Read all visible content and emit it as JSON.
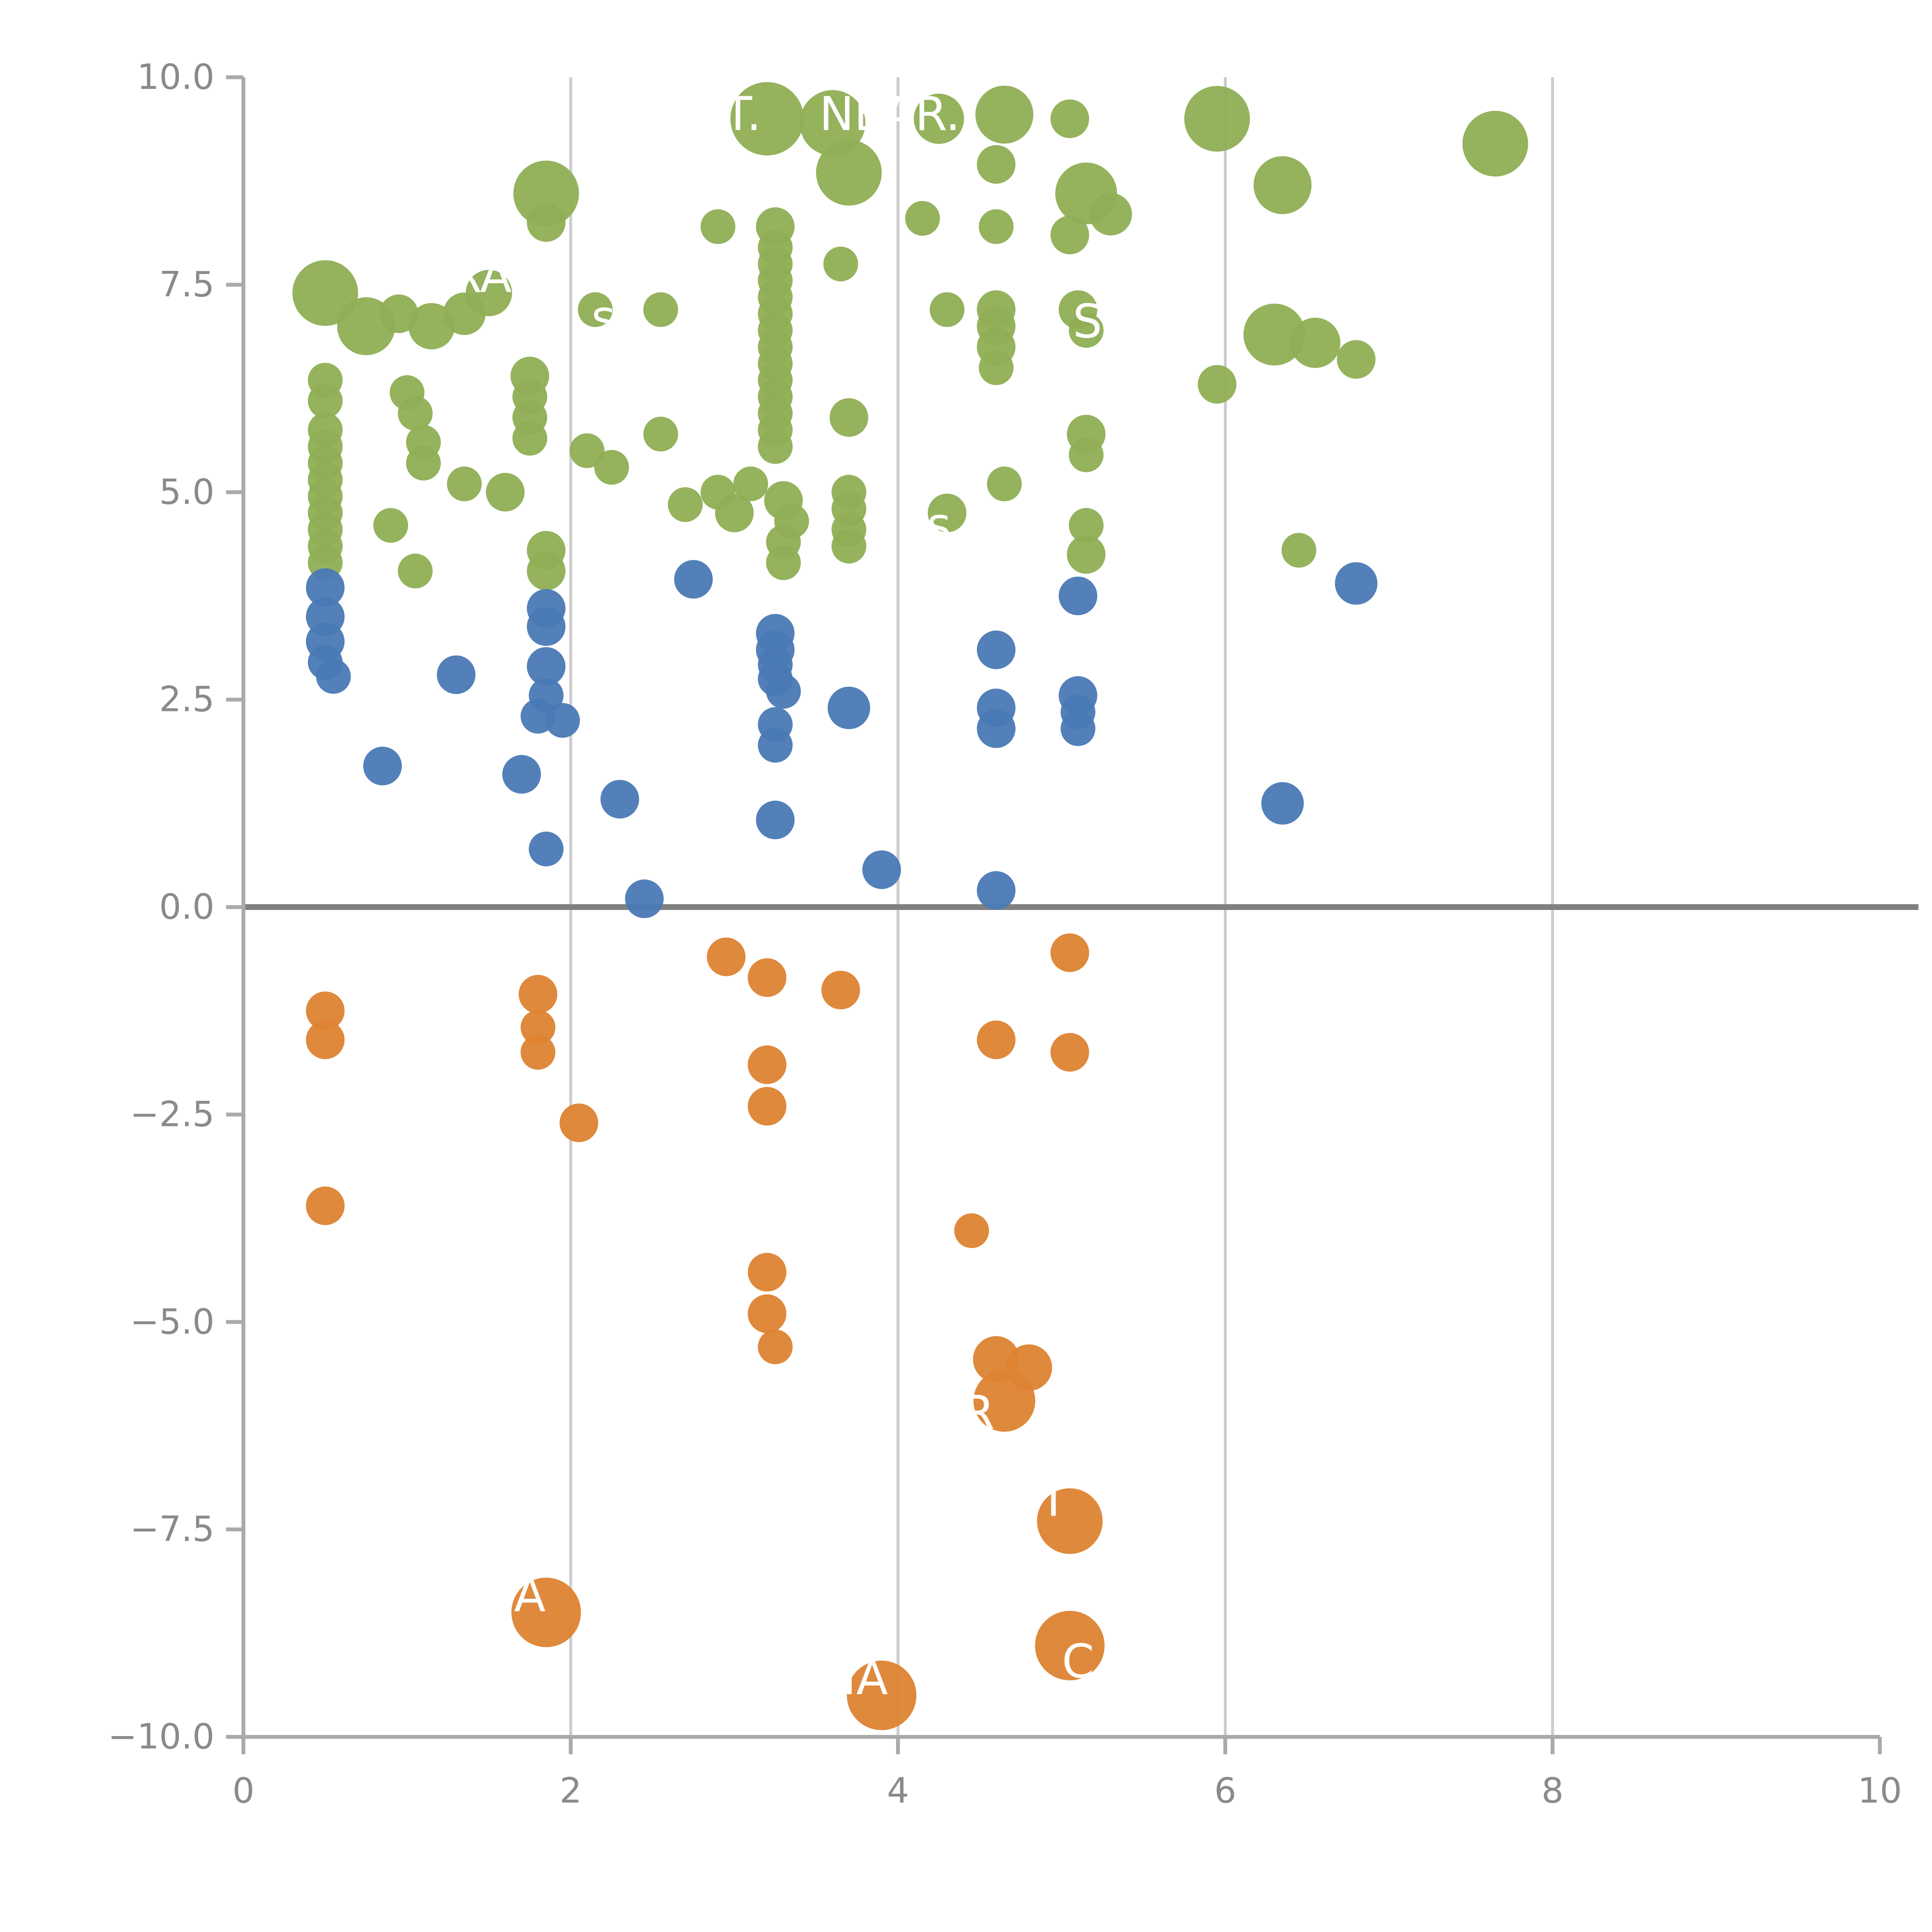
{
  "chart_data": {
    "type": "scatter",
    "title": "",
    "xlabel": "",
    "ylabel": "",
    "xlim": [
      0,
      10
    ],
    "ylim": [
      -10,
      10
    ],
    "x_ticks": [
      0,
      2,
      4,
      6,
      8,
      10
    ],
    "x_tick_labels": [
      "0",
      "2",
      "4",
      "6",
      "8",
      "10"
    ],
    "y_ticks": [
      10.0,
      7.5,
      5.0,
      2.5,
      0.0,
      -2.5,
      -5.0,
      -7.5,
      -10.0
    ],
    "y_tick_labels": [
      "10.0",
      "7.5",
      "5.0",
      "2.5",
      "0.0",
      "−2.5",
      "−5.0",
      "−7.5",
      "−10.0"
    ],
    "grid_x": [
      2,
      4,
      6,
      8
    ],
    "grid_on": "vertical-only",
    "zero_line": {
      "y": 0,
      "color": "#808080",
      "width": 3
    },
    "legend": "none",
    "colors": {
      "background": "#ffffff",
      "grid": "#cccccc",
      "spine": "#aaaaaa",
      "tick_text": "#8a8a8a",
      "green": "#8fae54",
      "blue": "#4a79b5",
      "orange": "#dd8332"
    },
    "series": [
      {
        "name": "upper-green-group",
        "color": "#8fae54",
        "points": [
          [
            3.2,
            9.5,
            19
          ],
          [
            3.6,
            9.45,
            17
          ],
          [
            4.25,
            9.5,
            13
          ],
          [
            4.65,
            9.55,
            15
          ],
          [
            5.05,
            9.5,
            10
          ],
          [
            5.95,
            9.5,
            17
          ],
          [
            7.65,
            9.2,
            17
          ],
          [
            3.7,
            8.85,
            17
          ],
          [
            4.6,
            8.95,
            10
          ],
          [
            1.85,
            8.6,
            17
          ],
          [
            1.85,
            8.25,
            10
          ],
          [
            5.15,
            8.6,
            16
          ],
          [
            5.3,
            8.35,
            11
          ],
          [
            6.35,
            8.7,
            15
          ],
          [
            2.9,
            8.2,
            9
          ],
          [
            3.25,
            8.2,
            10
          ],
          [
            3.25,
            7.95,
            9
          ],
          [
            3.25,
            7.75,
            9
          ],
          [
            3.25,
            7.55,
            9
          ],
          [
            3.65,
            7.75,
            9
          ],
          [
            4.15,
            8.3,
            9
          ],
          [
            4.6,
            8.2,
            9
          ],
          [
            5.05,
            8.1,
            10
          ],
          [
            0.5,
            7.4,
            17
          ],
          [
            0.75,
            7.0,
            15
          ],
          [
            0.95,
            7.15,
            10
          ],
          [
            1.15,
            7.0,
            12
          ],
          [
            1.35,
            7.15,
            11
          ],
          [
            1.5,
            7.4,
            12
          ],
          [
            2.15,
            7.2,
            9
          ],
          [
            2.55,
            7.2,
            9
          ],
          [
            3.25,
            7.35,
            9
          ],
          [
            3.25,
            7.15,
            9
          ],
          [
            3.25,
            6.95,
            9
          ],
          [
            3.25,
            6.75,
            9
          ],
          [
            3.25,
            6.55,
            9
          ],
          [
            3.25,
            6.35,
            9
          ],
          [
            3.25,
            6.15,
            9
          ],
          [
            3.25,
            5.95,
            9
          ],
          [
            3.25,
            5.75,
            9
          ],
          [
            3.25,
            5.55,
            9
          ],
          [
            4.3,
            7.2,
            9
          ],
          [
            4.6,
            7.2,
            10
          ],
          [
            4.6,
            7.0,
            10
          ],
          [
            4.6,
            6.75,
            10
          ],
          [
            4.6,
            6.5,
            9
          ],
          [
            5.1,
            7.2,
            10
          ],
          [
            5.15,
            6.95,
            9
          ],
          [
            6.3,
            6.9,
            16
          ],
          [
            6.55,
            6.8,
            13
          ],
          [
            6.8,
            6.6,
            10
          ],
          [
            0.5,
            6.35,
            9
          ],
          [
            0.5,
            6.1,
            9
          ],
          [
            1.0,
            6.2,
            9
          ],
          [
            1.05,
            5.95,
            9
          ],
          [
            1.75,
            6.4,
            10
          ],
          [
            1.75,
            6.15,
            9
          ],
          [
            1.75,
            5.9,
            9
          ],
          [
            1.75,
            5.65,
            9
          ],
          [
            2.1,
            5.5,
            9
          ],
          [
            2.25,
            5.3,
            9
          ],
          [
            2.55,
            5.7,
            9
          ],
          [
            0.5,
            5.75,
            9
          ],
          [
            0.5,
            5.55,
            9
          ],
          [
            0.5,
            5.35,
            9
          ],
          [
            0.5,
            5.15,
            9
          ],
          [
            0.5,
            4.95,
            9
          ],
          [
            0.5,
            4.75,
            9
          ],
          [
            0.5,
            4.55,
            9
          ],
          [
            0.5,
            4.35,
            9
          ],
          [
            0.5,
            4.15,
            9
          ],
          [
            1.1,
            5.6,
            9
          ],
          [
            1.1,
            5.35,
            9
          ],
          [
            1.35,
            5.1,
            9
          ],
          [
            1.6,
            5.0,
            10
          ],
          [
            2.7,
            4.85,
            9
          ],
          [
            2.9,
            5.0,
            9
          ],
          [
            3.0,
            4.75,
            10
          ],
          [
            3.1,
            5.1,
            9
          ],
          [
            3.3,
            4.9,
            10
          ],
          [
            3.35,
            4.65,
            9
          ],
          [
            3.3,
            4.4,
            9
          ],
          [
            3.3,
            4.15,
            9
          ],
          [
            3.7,
            5.9,
            10
          ],
          [
            3.7,
            5.0,
            9
          ],
          [
            3.7,
            4.8,
            9
          ],
          [
            3.7,
            4.55,
            9
          ],
          [
            3.7,
            4.35,
            9
          ],
          [
            4.3,
            4.75,
            10
          ],
          [
            4.65,
            5.1,
            9
          ],
          [
            5.15,
            5.7,
            10
          ],
          [
            5.15,
            5.45,
            9
          ],
          [
            5.15,
            4.6,
            9
          ],
          [
            5.15,
            4.25,
            10
          ],
          [
            5.95,
            6.3,
            10
          ],
          [
            6.45,
            4.3,
            9
          ],
          [
            0.9,
            4.6,
            9
          ],
          [
            1.05,
            4.05,
            9
          ],
          [
            1.85,
            4.3,
            10
          ],
          [
            1.85,
            4.05,
            10
          ]
        ]
      },
      {
        "name": "middle-blue-group",
        "color": "#4a79b5",
        "points": [
          [
            0.5,
            3.85,
            10
          ],
          [
            0.5,
            3.5,
            10
          ],
          [
            0.5,
            3.2,
            10
          ],
          [
            0.5,
            2.95,
            9
          ],
          [
            0.55,
            2.78,
            9
          ],
          [
            0.85,
            1.7,
            10
          ],
          [
            1.3,
            2.8,
            10
          ],
          [
            1.7,
            1.6,
            10
          ],
          [
            1.85,
            3.6,
            10
          ],
          [
            1.85,
            3.38,
            10
          ],
          [
            1.85,
            2.9,
            10
          ],
          [
            1.85,
            2.55,
            9
          ],
          [
            1.8,
            2.3,
            9
          ],
          [
            1.95,
            2.25,
            9
          ],
          [
            1.85,
            0.7,
            9
          ],
          [
            2.3,
            1.3,
            10
          ],
          [
            2.45,
            0.1,
            10
          ],
          [
            2.75,
            3.95,
            10
          ],
          [
            3.25,
            3.3,
            10
          ],
          [
            3.25,
            3.1,
            10
          ],
          [
            3.25,
            2.92,
            9
          ],
          [
            3.25,
            2.75,
            9
          ],
          [
            3.3,
            2.6,
            9
          ],
          [
            3.25,
            2.2,
            9
          ],
          [
            3.25,
            1.95,
            9
          ],
          [
            3.25,
            1.05,
            10
          ],
          [
            3.7,
            2.4,
            11
          ],
          [
            3.9,
            0.45,
            10
          ],
          [
            4.6,
            3.1,
            10
          ],
          [
            4.6,
            2.4,
            10
          ],
          [
            4.6,
            2.15,
            10
          ],
          [
            4.6,
            0.2,
            10
          ],
          [
            5.1,
            3.75,
            10
          ],
          [
            5.1,
            2.55,
            10
          ],
          [
            5.1,
            2.35,
            9
          ],
          [
            5.1,
            2.15,
            9
          ],
          [
            6.35,
            1.25,
            11
          ],
          [
            6.8,
            3.9,
            11
          ]
        ]
      },
      {
        "name": "lower-orange-group",
        "color": "#dd8332",
        "points": [
          [
            0.5,
            -1.25,
            10
          ],
          [
            0.5,
            -1.6,
            10
          ],
          [
            0.5,
            -3.6,
            10
          ],
          [
            1.8,
            -1.05,
            10
          ],
          [
            1.8,
            -1.45,
            9
          ],
          [
            1.8,
            -1.75,
            9
          ],
          [
            2.05,
            -2.6,
            10
          ],
          [
            2.95,
            -0.6,
            10
          ],
          [
            3.2,
            -0.85,
            10
          ],
          [
            3.2,
            -1.9,
            10
          ],
          [
            3.2,
            -2.4,
            10
          ],
          [
            3.2,
            -4.4,
            10
          ],
          [
            3.2,
            -4.9,
            10
          ],
          [
            3.25,
            -5.3,
            9
          ],
          [
            3.65,
            -1.0,
            10
          ],
          [
            4.45,
            -3.9,
            9
          ],
          [
            4.6,
            -1.6,
            10
          ],
          [
            5.05,
            -0.55,
            10
          ],
          [
            5.05,
            -1.75,
            10
          ],
          [
            4.6,
            -5.45,
            12
          ],
          [
            4.8,
            -5.55,
            12
          ],
          [
            4.65,
            -5.95,
            16
          ],
          [
            5.05,
            -7.4,
            17
          ],
          [
            1.85,
            -8.5,
            18
          ],
          [
            5.05,
            -8.9,
            18
          ],
          [
            3.9,
            -9.5,
            18
          ]
        ]
      }
    ],
    "annotations": [
      {
        "text": "T.",
        "x": 3.05,
        "y": 9.55
      },
      {
        "text": "NEAR.",
        "x": 3.95,
        "y": 9.55
      },
      {
        "text": "RA",
        "x": 1.45,
        "y": 7.6
      },
      {
        "text": "s",
        "x": 2.2,
        "y": 7.1
      },
      {
        "text": "SI",
        "x": 5.2,
        "y": 7.05
      },
      {
        "text": "s",
        "x": 4.25,
        "y": 4.6
      },
      {
        "text": "B R",
        "x": 4.35,
        "y": -6.1
      },
      {
        "text": "T",
        "x": 4.95,
        "y": -7.15
      },
      {
        "text": "A",
        "x": 1.75,
        "y": -8.3
      },
      {
        "text": "C",
        "x": 5.1,
        "y": -9.1
      },
      {
        "text": "IA",
        "x": 3.8,
        "y": -9.3
      }
    ]
  }
}
